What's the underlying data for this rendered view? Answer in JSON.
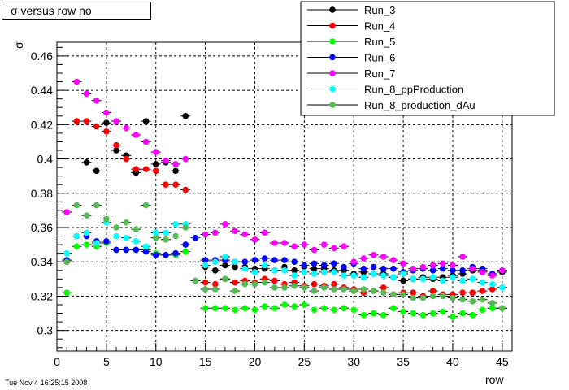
{
  "chart_data": {
    "type": "scatter",
    "title": "σ versus row no",
    "xlabel": "row",
    "ylabel": "σ",
    "xlim": [
      0,
      46
    ],
    "ylim": [
      0.288,
      0.468
    ],
    "x_ticks": [
      0,
      5,
      10,
      15,
      20,
      25,
      30,
      35,
      40,
      45
    ],
    "y_ticks": [
      0.3,
      0.32,
      0.34,
      0.36,
      0.38,
      0.4,
      0.42,
      0.44,
      0.46
    ],
    "grid": true,
    "legend_position": "top-right",
    "series": [
      {
        "name": "Run_3",
        "color": "#000000",
        "x": [
          1,
          3,
          4,
          5,
          6,
          7,
          8,
          9,
          10,
          11,
          12,
          13,
          15,
          16,
          17,
          18,
          19,
          20,
          21,
          22,
          23,
          24,
          25,
          26,
          27,
          28,
          29,
          30,
          31,
          32,
          33,
          34,
          35,
          36,
          37,
          38,
          39,
          40,
          41,
          42,
          43,
          44,
          45
        ],
        "y": [
          0.34,
          0.398,
          0.393,
          0.421,
          0.405,
          0.402,
          0.392,
          0.422,
          0.397,
          0.398,
          0.393,
          0.425,
          0.337,
          0.335,
          0.338,
          0.337,
          0.337,
          0.336,
          0.336,
          0.335,
          0.337,
          0.335,
          0.337,
          0.336,
          0.336,
          0.335,
          0.335,
          0.333,
          0.334,
          0.333,
          0.333,
          0.331,
          0.329,
          0.33,
          0.331,
          0.33,
          0.331,
          0.332,
          0.333,
          0.335,
          0.335,
          0.333,
          0.334
        ]
      },
      {
        "name": "Run_4",
        "color": "#ff0000",
        "x": [
          2,
          3,
          4,
          5,
          6,
          7,
          8,
          9,
          10,
          11,
          12,
          13,
          15,
          16,
          17,
          18,
          19,
          20,
          21,
          22,
          23,
          24,
          25,
          26,
          27,
          28,
          29,
          30,
          31,
          32,
          33,
          34,
          35,
          36,
          37,
          38,
          39,
          40,
          41,
          42,
          43,
          44,
          45
        ],
        "y": [
          0.422,
          0.422,
          0.419,
          0.416,
          0.408,
          0.4,
          0.394,
          0.394,
          0.393,
          0.385,
          0.385,
          0.382,
          0.328,
          0.327,
          0.33,
          0.328,
          0.329,
          0.328,
          0.33,
          0.329,
          0.327,
          0.328,
          0.326,
          0.327,
          0.326,
          0.327,
          0.325,
          0.324,
          0.322,
          0.323,
          0.325,
          0.321,
          0.322,
          0.322,
          0.32,
          0.323,
          0.321,
          0.321,
          0.322,
          0.322,
          0.323,
          0.324,
          0.325
        ]
      },
      {
        "name": "Run_5",
        "color": "#00ff00",
        "x": [
          1,
          2,
          3,
          4,
          5,
          6,
          7,
          8,
          9,
          10,
          11,
          12,
          13,
          15,
          16,
          17,
          18,
          19,
          20,
          21,
          22,
          23,
          24,
          25,
          26,
          27,
          28,
          29,
          30,
          31,
          32,
          33,
          34,
          35,
          36,
          37,
          38,
          39,
          40,
          41,
          42,
          43,
          44,
          45
        ],
        "y": [
          0.322,
          0.349,
          0.35,
          0.349,
          0.351,
          0.347,
          0.347,
          0.347,
          0.347,
          0.345,
          0.344,
          0.344,
          0.346,
          0.313,
          0.313,
          0.313,
          0.312,
          0.313,
          0.312,
          0.314,
          0.313,
          0.315,
          0.314,
          0.315,
          0.312,
          0.313,
          0.312,
          0.313,
          0.312,
          0.309,
          0.31,
          0.309,
          0.313,
          0.311,
          0.31,
          0.309,
          0.31,
          0.311,
          0.308,
          0.31,
          0.309,
          0.312,
          0.313,
          0.313
        ]
      },
      {
        "name": "Run_6",
        "color": "#0000ff",
        "x": [
          1,
          2,
          3,
          4,
          5,
          6,
          7,
          8,
          9,
          10,
          11,
          12,
          13,
          14,
          15,
          16,
          17,
          18,
          19,
          20,
          21,
          22,
          23,
          24,
          25,
          26,
          27,
          28,
          29,
          30,
          31,
          32,
          33,
          34,
          35,
          36,
          37,
          38,
          39,
          40,
          41,
          42,
          43,
          44,
          45
        ],
        "y": [
          0.341,
          0.355,
          0.355,
          0.352,
          0.352,
          0.347,
          0.347,
          0.347,
          0.346,
          0.344,
          0.344,
          0.345,
          0.35,
          0.354,
          0.341,
          0.341,
          0.341,
          0.34,
          0.34,
          0.341,
          0.342,
          0.341,
          0.341,
          0.34,
          0.338,
          0.339,
          0.338,
          0.339,
          0.337,
          0.339,
          0.336,
          0.337,
          0.336,
          0.336,
          0.334,
          0.335,
          0.336,
          0.335,
          0.336,
          0.335,
          0.335,
          0.337,
          0.336,
          0.333,
          0.335
        ]
      },
      {
        "name": "Run_7",
        "color": "#ff00ff",
        "x": [
          1,
          2,
          3,
          4,
          5,
          6,
          7,
          8,
          9,
          10,
          11,
          12,
          13,
          15,
          16,
          17,
          18,
          19,
          20,
          21,
          22,
          23,
          24,
          25,
          26,
          27,
          28,
          29,
          30,
          31,
          32,
          33,
          34,
          35,
          36,
          37,
          38,
          39,
          40,
          41,
          42,
          43,
          44,
          45
        ],
        "y": [
          0.369,
          0.445,
          0.438,
          0.434,
          0.427,
          0.422,
          0.418,
          0.414,
          0.41,
          0.404,
          0.399,
          0.397,
          0.4,
          0.356,
          0.357,
          0.362,
          0.358,
          0.356,
          0.353,
          0.357,
          0.351,
          0.351,
          0.349,
          0.35,
          0.347,
          0.35,
          0.348,
          0.349,
          0.34,
          0.342,
          0.344,
          0.343,
          0.341,
          0.339,
          0.336,
          0.337,
          0.338,
          0.339,
          0.338,
          0.343,
          0.336,
          0.334,
          0.332,
          0.335
        ]
      },
      {
        "name": "Run_8_ppProduction",
        "color": "#00ffff",
        "x": [
          1,
          2,
          3,
          4,
          5,
          6,
          7,
          8,
          9,
          10,
          11,
          12,
          13,
          15,
          16,
          17,
          18,
          19,
          20,
          21,
          22,
          23,
          24,
          25,
          26,
          27,
          28,
          29,
          30,
          31,
          32,
          33,
          34,
          35,
          36,
          37,
          38,
          39,
          40,
          41,
          42,
          43,
          44,
          45
        ],
        "y": [
          0.345,
          0.355,
          0.357,
          0.351,
          0.363,
          0.355,
          0.354,
          0.352,
          0.349,
          0.357,
          0.357,
          0.362,
          0.362,
          0.338,
          0.34,
          0.343,
          0.34,
          0.336,
          0.334,
          0.338,
          0.335,
          0.335,
          0.332,
          0.334,
          0.333,
          0.334,
          0.334,
          0.332,
          0.332,
          0.331,
          0.333,
          0.332,
          0.331,
          0.333,
          0.33,
          0.33,
          0.331,
          0.329,
          0.331,
          0.329,
          0.33,
          0.328,
          0.327,
          0.325
        ]
      },
      {
        "name": "Run_8_production_dAu",
        "color": "#55bb55",
        "x": [
          1,
          2,
          3,
          4,
          5,
          6,
          7,
          8,
          9,
          10,
          11,
          12,
          13,
          14,
          15,
          16,
          17,
          18,
          19,
          20,
          21,
          22,
          23,
          24,
          25,
          26,
          27,
          28,
          29,
          30,
          31,
          32,
          33,
          34,
          35,
          36,
          37,
          38,
          39,
          40,
          41,
          42,
          43,
          44,
          45
        ],
        "y": [
          0.34,
          0.373,
          0.367,
          0.373,
          0.365,
          0.36,
          0.363,
          0.359,
          0.373,
          0.354,
          0.353,
          0.355,
          0.36,
          0.329,
          0.324,
          0.324,
          0.33,
          0.323,
          0.327,
          0.327,
          0.328,
          0.325,
          0.325,
          0.326,
          0.325,
          0.323,
          0.325,
          0.324,
          0.324,
          0.323,
          0.324,
          0.323,
          0.322,
          0.321,
          0.321,
          0.319,
          0.319,
          0.32,
          0.32,
          0.319,
          0.318,
          0.317,
          0.318,
          0.316,
          0.313
        ]
      }
    ]
  },
  "timestamp": "Tue Nov  4 16:25:15 2008"
}
